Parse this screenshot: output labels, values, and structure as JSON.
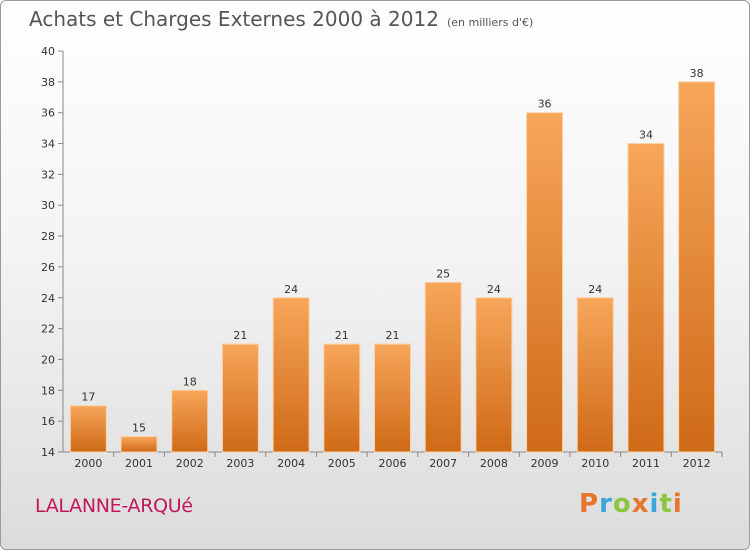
{
  "chart_data": {
    "type": "bar",
    "title": "Achats et Charges Externes 2000 à 2012",
    "subtitle": "(en milliers d'€)",
    "categories": [
      "2000",
      "2001",
      "2002",
      "2003",
      "2004",
      "2005",
      "2006",
      "2007",
      "2008",
      "2009",
      "2010",
      "2011",
      "2012"
    ],
    "values": [
      17,
      15,
      18,
      21,
      24,
      21,
      21,
      25,
      24,
      36,
      24,
      34,
      38
    ],
    "ylim": [
      14,
      40
    ],
    "yticks": [
      14,
      16,
      18,
      20,
      22,
      24,
      26,
      28,
      30,
      32,
      34,
      36,
      38,
      40
    ],
    "grid": false,
    "bar_color": "#f0913c",
    "legend": "none"
  },
  "footer": {
    "commune": "LALANNE-ARQUé",
    "brand": [
      "P",
      "r",
      "o",
      "x",
      "i",
      "t",
      "i"
    ],
    "brand_colors": [
      "#e8752b",
      "#3aa7d9",
      "#8cc63f",
      "#e8752b",
      "#3aa7d9",
      "#8cc63f",
      "#e8752b"
    ]
  }
}
